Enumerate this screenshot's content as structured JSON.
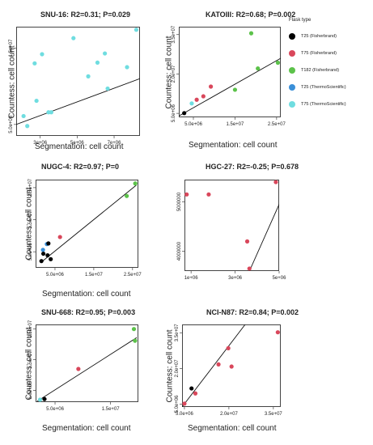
{
  "legend": {
    "title": "Flask type",
    "items": [
      {
        "label": "T25 (Fisherbrand)",
        "color": "#000000"
      },
      {
        "label": "T75 (Fisherbrand)",
        "color": "#d9475b"
      },
      {
        "label": "T182 (Fisherbrand)",
        "color": "#5cc24a"
      },
      {
        "label": "T25 (ThermoScientific)",
        "color": "#3a8fd8"
      },
      {
        "label": "T75 (ThermoScientific)",
        "color": "#6fdde0"
      }
    ]
  },
  "chart_data": [
    {
      "type": "scatter",
      "title": "SNU-16: R2=0.31; P=0.029",
      "xlabel": "Segmentation: cell count",
      "ylabel": "Countess: cell count",
      "xlim": [
        1700000,
        8400000
      ],
      "ylim": [
        3500000,
        17800000
      ],
      "xticks": [
        {
          "v": 3000000,
          "label": "3e+06"
        },
        {
          "v": 5000000,
          "label": "5e+06"
        },
        {
          "v": 7000000,
          "label": "7e+06"
        }
      ],
      "yticks": [
        {
          "v": 5000000,
          "label": "5.0e+06"
        },
        {
          "v": 15000000,
          "label": "1.5e+07"
        }
      ],
      "points": [
        {
          "x": 2100000,
          "y": 6100000,
          "color": "#6fdde0"
        },
        {
          "x": 2300000,
          "y": 4800000,
          "color": "#6fdde0"
        },
        {
          "x": 2700000,
          "y": 13000000,
          "color": "#6fdde0"
        },
        {
          "x": 2800000,
          "y": 8100000,
          "color": "#6fdde0"
        },
        {
          "x": 3100000,
          "y": 14200000,
          "color": "#6fdde0"
        },
        {
          "x": 3450000,
          "y": 6600000,
          "color": "#6fdde0"
        },
        {
          "x": 3600000,
          "y": 6600000,
          "color": "#6fdde0"
        },
        {
          "x": 4800000,
          "y": 16300000,
          "color": "#6fdde0"
        },
        {
          "x": 5600000,
          "y": 11300000,
          "color": "#6fdde0"
        },
        {
          "x": 6100000,
          "y": 13100000,
          "color": "#6fdde0"
        },
        {
          "x": 6500000,
          "y": 14300000,
          "color": "#6fdde0"
        },
        {
          "x": 6650000,
          "y": 9700000,
          "color": "#6fdde0"
        },
        {
          "x": 7700000,
          "y": 12500000,
          "color": "#6fdde0"
        },
        {
          "x": 8200000,
          "y": 17400000,
          "color": "#6fdde0"
        }
      ],
      "fit": [
        [
          1700000,
          5000000
        ],
        [
          8400000,
          11000000
        ]
      ]
    },
    {
      "type": "scatter",
      "title": "KATOIII: R2=0.68; P=0.002",
      "xlabel": "Segmentation: cell count",
      "ylabel": "Countess: cell count",
      "xlim": [
        1500000,
        26000000
      ],
      "ylim": [
        3500000,
        38000000
      ],
      "xticks": [
        {
          "v": 5000000,
          "label": "5.0e+06"
        },
        {
          "v": 15000000,
          "label": "1.5e+07"
        },
        {
          "v": 25000000,
          "label": "2.5e+07"
        }
      ],
      "yticks": [
        {
          "v": 5000000,
          "label": "5.0e+06"
        },
        {
          "v": 20000000,
          "label": "2.0e+07"
        },
        {
          "v": 35000000,
          "label": "3.5e+07"
        }
      ],
      "points": [
        {
          "x": 2800000,
          "y": 5100000,
          "color": "#000000"
        },
        {
          "x": 4600000,
          "y": 8800000,
          "color": "#6fdde0"
        },
        {
          "x": 5800000,
          "y": 10200000,
          "color": "#d9475b"
        },
        {
          "x": 7400000,
          "y": 11500000,
          "color": "#d9475b"
        },
        {
          "x": 9200000,
          "y": 15200000,
          "color": "#d9475b"
        },
        {
          "x": 15000000,
          "y": 14000000,
          "color": "#5cc24a"
        },
        {
          "x": 18900000,
          "y": 35500000,
          "color": "#5cc24a"
        },
        {
          "x": 20500000,
          "y": 22100000,
          "color": "#5cc24a"
        },
        {
          "x": 25300000,
          "y": 24300000,
          "color": "#5cc24a"
        }
      ],
      "fit": [
        [
          1500000,
          4000000
        ],
        [
          26000000,
          26000000
        ]
      ]
    },
    {
      "type": "scatter",
      "title": "NUGC-4: R2=0.97; P=0",
      "xlabel": "Segmentation: cell count",
      "ylabel": "Countess: cell count",
      "xlim": [
        0,
        26500000
      ],
      "ylim": [
        0,
        27500000
      ],
      "xticks": [
        {
          "v": 5000000,
          "label": "5.0e+06"
        },
        {
          "v": 15000000,
          "label": "1.5e+07"
        },
        {
          "v": 25000000,
          "label": "2.5e+07"
        }
      ],
      "yticks": [
        {
          "v": 5000000,
          "label": "5.0e+06"
        },
        {
          "v": 15000000,
          "label": "1.5e+07"
        },
        {
          "v": 25000000,
          "label": "2.5e+07"
        }
      ],
      "points": [
        {
          "x": 1900000,
          "y": 5600000,
          "color": "#3a8fd8"
        },
        {
          "x": 2900000,
          "y": 7400000,
          "color": "#3a8fd8"
        },
        {
          "x": 3300000,
          "y": 7600000,
          "color": "#000000"
        },
        {
          "x": 2000000,
          "y": 4400000,
          "color": "#000000"
        },
        {
          "x": 3100000,
          "y": 3900000,
          "color": "#000000"
        },
        {
          "x": 1500000,
          "y": 2100000,
          "color": "#000000"
        },
        {
          "x": 3900000,
          "y": 2700000,
          "color": "#000000"
        },
        {
          "x": 6300000,
          "y": 9600000,
          "color": "#d9475b"
        },
        {
          "x": 23500000,
          "y": 22400000,
          "color": "#5cc24a"
        },
        {
          "x": 25700000,
          "y": 26300000,
          "color": "#5cc24a"
        }
      ],
      "fit": [
        [
          1500000,
          1800000
        ],
        [
          26000000,
          25800000
        ]
      ]
    },
    {
      "type": "scatter",
      "title": "HGC-27: R2=-0.25; P=0.678",
      "xlabel": "",
      "ylabel": "",
      "xlim": [
        700000,
        5000000
      ],
      "ylim": [
        3600000,
        5450000
      ],
      "xticks": [
        {
          "v": 1000000,
          "label": "1e+06"
        },
        {
          "v": 3000000,
          "label": "3e+06"
        },
        {
          "v": 5000000,
          "label": "5e+06"
        }
      ],
      "yticks": [
        {
          "v": 4000000,
          "label": "4000000"
        },
        {
          "v": 5000000,
          "label": "5000000"
        }
      ],
      "points": [
        {
          "x": 800000,
          "y": 5150000,
          "color": "#d9475b"
        },
        {
          "x": 1800000,
          "y": 5150000,
          "color": "#d9475b"
        },
        {
          "x": 3550000,
          "y": 4200000,
          "color": "#d9475b"
        },
        {
          "x": 3650000,
          "y": 3650000,
          "color": "#d9475b"
        },
        {
          "x": 4850000,
          "y": 5400000,
          "color": "#d9475b"
        }
      ],
      "fit": [
        [
          3650000,
          3600000
        ],
        [
          5000000,
          4950000
        ]
      ]
    },
    {
      "type": "scatter",
      "title": "SNU-668: R2=0.95; P=0.003",
      "xlabel": "Segmentation: cell count",
      "ylabel": "Countess: cell count",
      "xlim": [
        1500000,
        20000000
      ],
      "ylim": [
        1200000,
        26500000
      ],
      "xticks": [
        {
          "v": 5000000,
          "label": "5.0e+06"
        },
        {
          "v": 15000000,
          "label": "1.5e+07"
        }
      ],
      "yticks": [
        {
          "v": 5000000,
          "label": "5.0e+06"
        },
        {
          "v": 15000000,
          "label": "1.5e+07"
        },
        {
          "v": 25000000,
          "label": "2.5e+07"
        }
      ],
      "points": [
        {
          "x": 2300000,
          "y": 2000000,
          "color": "#6fdde0"
        },
        {
          "x": 3100000,
          "y": 2200000,
          "color": "#000000"
        },
        {
          "x": 9200000,
          "y": 12000000,
          "color": "#d9475b"
        },
        {
          "x": 19200000,
          "y": 25000000,
          "color": "#5cc24a"
        },
        {
          "x": 19400000,
          "y": 21200000,
          "color": "#5cc24a"
        }
      ],
      "fit": [
        [
          1800000,
          1500000
        ],
        [
          19700000,
          22200000
        ]
      ]
    },
    {
      "type": "scatter",
      "title": "NCI-N87: R2=0.84; P=0.002",
      "xlabel": "Segmentation: cell count",
      "ylabel": "Countess: cell count",
      "xlim": [
        4200000,
        37500000
      ],
      "ylim": [
        3800000,
        38500000
      ],
      "xticks": [
        {
          "v": 5000000,
          "label": "5.0e+06"
        },
        {
          "v": 20000000,
          "label": "2.0e+07"
        },
        {
          "v": 35000000,
          "label": "3.5e+07"
        }
      ],
      "yticks": [
        {
          "v": 5000000,
          "label": "5.0e+06"
        },
        {
          "v": 20000000,
          "label": "2.0e+07"
        },
        {
          "v": 35000000,
          "label": "3.5e+07"
        }
      ],
      "points": [
        {
          "x": 5000000,
          "y": 5200000,
          "color": "#d9475b"
        },
        {
          "x": 7400000,
          "y": 11600000,
          "color": "#000000"
        },
        {
          "x": 8700000,
          "y": 9500000,
          "color": "#d9475b"
        },
        {
          "x": 16500000,
          "y": 21700000,
          "color": "#d9475b"
        },
        {
          "x": 19800000,
          "y": 28500000,
          "color": "#d9475b"
        },
        {
          "x": 20900000,
          "y": 20800000,
          "color": "#d9475b"
        },
        {
          "x": 36500000,
          "y": 35200000,
          "color": "#d9475b"
        }
      ],
      "fit": [
        [
          4200000,
          3800000
        ],
        [
          25500000,
          38500000
        ]
      ]
    }
  ]
}
